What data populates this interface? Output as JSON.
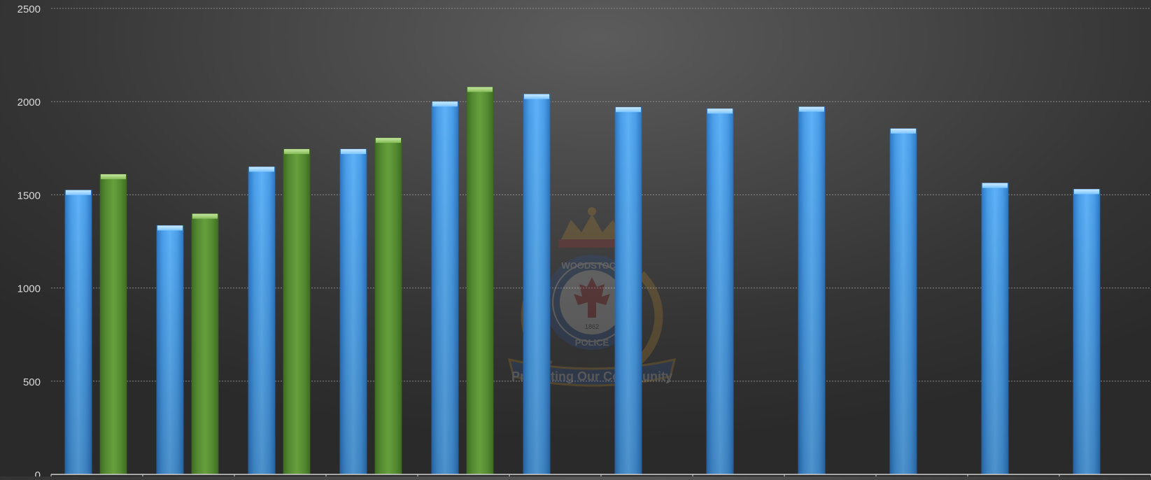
{
  "chart_data": {
    "type": "bar",
    "categories": [
      "",
      "",
      "",
      "",
      "",
      "",
      "",
      "",
      "",
      "",
      "",
      ""
    ],
    "series": [
      {
        "color": "#4aa3f0",
        "values": [
          1525,
          1335,
          1650,
          1745,
          2000,
          2040,
          1970,
          1962,
          1972,
          1855,
          1563,
          1530
        ]
      },
      {
        "color": "#5e9438",
        "values": [
          1610,
          1398,
          1745,
          1805,
          2078,
          null,
          null,
          null,
          null,
          null,
          null,
          null
        ]
      }
    ],
    "title": "",
    "xlabel": "",
    "ylabel": "",
    "ylim": [
      0,
      2500
    ],
    "yticks": [
      "0",
      "500",
      "1000",
      "1500",
      "2000",
      "2500"
    ],
    "grid": true,
    "legend": "none"
  },
  "watermark": {
    "name": "woodstock-police-crest",
    "lines": [
      "WOODSTOCK",
      "POLICE",
      "1862",
      "Protecting Our Community"
    ]
  }
}
